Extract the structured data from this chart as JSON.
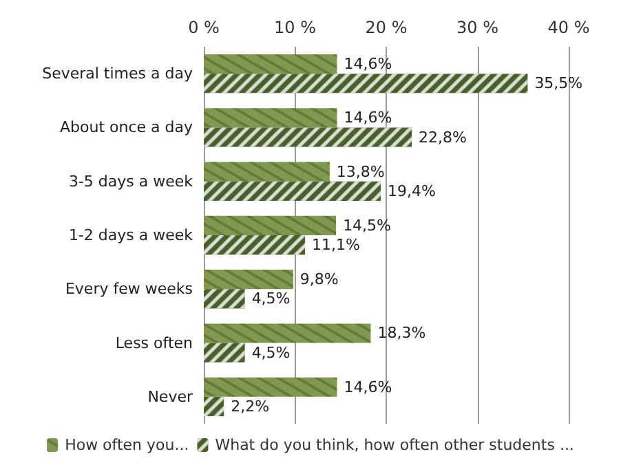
{
  "chart_data": {
    "type": "bar",
    "orientation": "horizontal",
    "categories": [
      "Several times a day",
      "About once a day",
      "3-5 days a week",
      "1-2 days a week",
      "Every few weeks",
      "Less often",
      "Never"
    ],
    "series": [
      {
        "name": "How often you...",
        "color": "#7f9a4e",
        "values": [
          14.6,
          14.6,
          13.8,
          14.5,
          9.8,
          18.3,
          14.6
        ],
        "value_labels": [
          "14,6%",
          "14,6%",
          "13,8%",
          "14,5%",
          "9,8%",
          "18,3%",
          "14,6%"
        ]
      },
      {
        "name": "What do you think, how often other students ...",
        "color": "#4a5e2a",
        "values": [
          35.5,
          22.8,
          19.4,
          11.1,
          4.5,
          4.5,
          2.2
        ],
        "value_labels": [
          "35,5%",
          "22,8%",
          "19,4%",
          "11,1%",
          "4,5%",
          "4,5%",
          "2,2%"
        ]
      }
    ],
    "xlim": [
      0,
      40
    ],
    "xticks": [
      {
        "value": 0,
        "label": "0 %"
      },
      {
        "value": 10,
        "label": "10 %"
      },
      {
        "value": 20,
        "label": "20 %"
      },
      {
        "value": 30,
        "label": "30 %"
      },
      {
        "value": 40,
        "label": "40 %"
      }
    ],
    "grid": "x",
    "legend": "bottom"
  }
}
